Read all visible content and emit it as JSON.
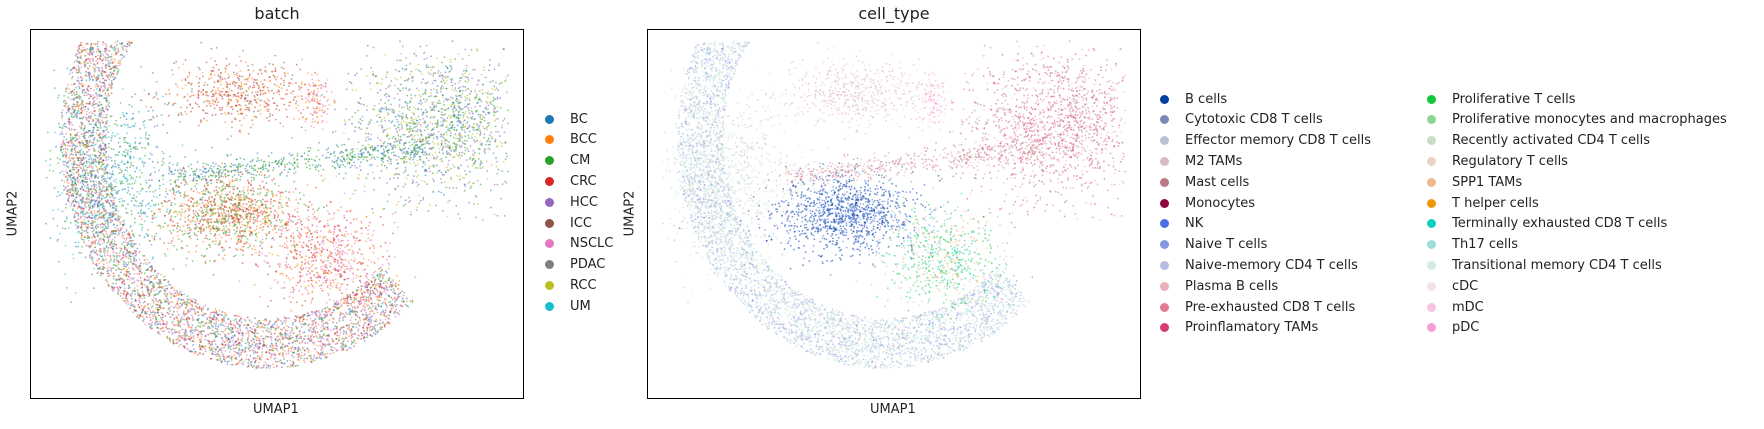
{
  "chart_data": [
    {
      "type": "scatter",
      "title": "batch",
      "xlabel": "UMAP1",
      "ylabel": "UMAP2",
      "grid": false,
      "legend_placement": "right",
      "series": [
        {
          "name": "BC",
          "color": "#1f77b4"
        },
        {
          "name": "BCC",
          "color": "#ff7f0e"
        },
        {
          "name": "CM",
          "color": "#2ca02c"
        },
        {
          "name": "CRC",
          "color": "#d62728"
        },
        {
          "name": "HCC",
          "color": "#9467bd"
        },
        {
          "name": "ICC",
          "color": "#8c564b"
        },
        {
          "name": "NSCLC",
          "color": "#e377c2"
        },
        {
          "name": "PDAC",
          "color": "#7f7f7f"
        },
        {
          "name": "RCC",
          "color": "#bcbd22"
        },
        {
          "name": "UM",
          "color": "#17becf"
        }
      ]
    },
    {
      "type": "scatter",
      "title": "cell_type",
      "xlabel": "UMAP1",
      "ylabel": "UMAP2",
      "grid": false,
      "legend_placement": "right",
      "series": [
        {
          "name": "B cells",
          "color": "#023fa5"
        },
        {
          "name": "Cytotoxic CD8 T cells",
          "color": "#7d87b9"
        },
        {
          "name": "Effector memory CD8 T cells",
          "color": "#bec1d4"
        },
        {
          "name": "M2 TAMs",
          "color": "#d6bcc0"
        },
        {
          "name": "Mast cells",
          "color": "#bb7784"
        },
        {
          "name": "Monocytes",
          "color": "#8e063b"
        },
        {
          "name": "NK",
          "color": "#4a6fe3"
        },
        {
          "name": "Naive T cells",
          "color": "#8595e1"
        },
        {
          "name": "Naive-memory CD4 T cells",
          "color": "#b5bbe3"
        },
        {
          "name": "Plasma B cells",
          "color": "#e6afb9"
        },
        {
          "name": "Pre-exhausted CD8 T cells",
          "color": "#e07b91"
        },
        {
          "name": "Proinflamatory TAMs",
          "color": "#d33f6a"
        },
        {
          "name": "Proliferative T cells",
          "color": "#11c638"
        },
        {
          "name": "Proliferative monocytes and macrophages",
          "color": "#8dd593"
        },
        {
          "name": "Recently activated CD4 T cells",
          "color": "#c6dec7"
        },
        {
          "name": "Regulatory T cells",
          "color": "#ead3c6"
        },
        {
          "name": "SPP1 TAMs",
          "color": "#f0b98d"
        },
        {
          "name": "T helper cells",
          "color": "#ef9708"
        },
        {
          "name": "Terminally exhausted CD8 T cells",
          "color": "#0fcfc0"
        },
        {
          "name": "Th17 cells",
          "color": "#9cded6"
        },
        {
          "name": "Transitional memory CD4 T cells",
          "color": "#d5eae7"
        },
        {
          "name": "cDC",
          "color": "#f3e1eb"
        },
        {
          "name": "mDC",
          "color": "#f6c4e1"
        },
        {
          "name": "pDC",
          "color": "#f79cd4"
        }
      ]
    }
  ]
}
